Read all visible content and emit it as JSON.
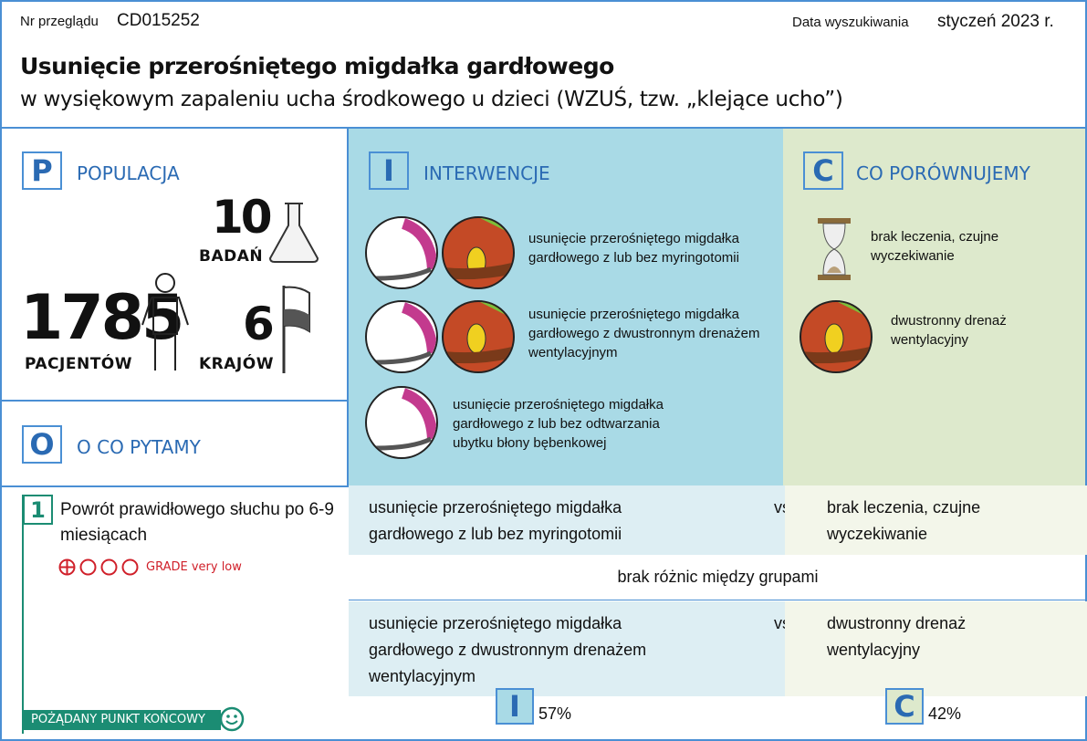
{
  "header": {
    "review_label": "Nr przeglądu",
    "review_id": "CD015252",
    "date_label": "Data wyszukiwania",
    "date_value": "styczeń 2023 r.",
    "title": "Usunięcie przerośniętego migdałka gardłowego",
    "subtitle": "w wysiękowym zapaleniu ucha środkowego u dzieci (WZUŚ, tzw. „klejące ucho”)"
  },
  "population": {
    "letter": "P",
    "title": "POPULACJA",
    "studies": "10",
    "studies_label": "BADAŃ",
    "patients": "1785",
    "patients_label": "PACJENTÓW",
    "countries": "6",
    "countries_label": "KRAJÓW"
  },
  "outcome": {
    "letter": "O",
    "title": "O CO PYTAMY"
  },
  "interventions": {
    "letter": "I",
    "title": "INTERWENCJE",
    "items": [
      "usunięcie przerośniętego migdałka gardłowego z lub bez myringotomii",
      "usunięcie przerośniętego migdałka gardłowego z dwustronnym drenażem wentylacyjnym",
      "usunięcie przerośniętego migdałka gardłowego z lub bez odtwarzania ubytku błony bębenkowej"
    ]
  },
  "comparison": {
    "letter": "C",
    "title": "CO PORÓWNUJEMY",
    "items": [
      "brak leczenia, czujne wyczekiwanie",
      "dwustronny drenaż wentylacyjny"
    ]
  },
  "result": {
    "number": "1",
    "outcome": "Powrót prawidłowego słuchu po 6-9 miesiącach",
    "grade": "GRADE very low",
    "grade_level": 1,
    "grade_max": 4,
    "desired": "POŻĄDANY PUNKT KOŃCOWY",
    "comparisons": [
      {
        "i": "usunięcie przerośniętego migdałka gardłowego z lub bez myringotomii",
        "vs": "vs",
        "c": "brak leczenia, czujne wyczekiwanie",
        "result": "brak różnic między grupami"
      },
      {
        "i": "usunięcie przerośniętego migdałka gardłowego z dwustronnym drenażem wentylacyjnym",
        "vs": "vs",
        "c": "dwustronny drenaż wentylacyjny",
        "i_letter": "I",
        "i_pct": "57%",
        "c_letter": "C",
        "c_pct": "42%"
      }
    ]
  },
  "colors": {
    "border": "#4a8fd4",
    "intervention_bg": "#a9dae6",
    "comparison_bg": "#dde9cc",
    "accent_blue": "#2a6ab3",
    "green": "#1b8c73",
    "red": "#d0202a"
  }
}
